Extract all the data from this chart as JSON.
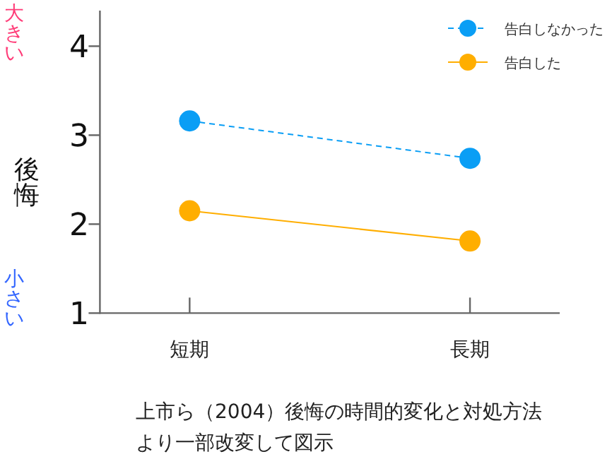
{
  "chart_data": {
    "type": "line",
    "ylabel": "後悔",
    "categories": [
      "短期",
      "長期"
    ],
    "series": [
      {
        "name": "告白しなかった",
        "color": "#0a9ef5",
        "values": [
          3.16,
          2.74
        ],
        "line_style": "dashed"
      },
      {
        "name": "告白した",
        "color": "#ffae00",
        "values": [
          2.15,
          1.81
        ],
        "line_style": "solid"
      }
    ],
    "ylim": [
      1,
      4.4
    ],
    "yticks": [
      1,
      2,
      3,
      4
    ],
    "marker": "circle",
    "legend": "top right",
    "annotations": [
      "大きい",
      "小さい",
      "上市ら（2004）後悔の時間的変化と対処方法より一部改変して図示"
    ]
  }
}
